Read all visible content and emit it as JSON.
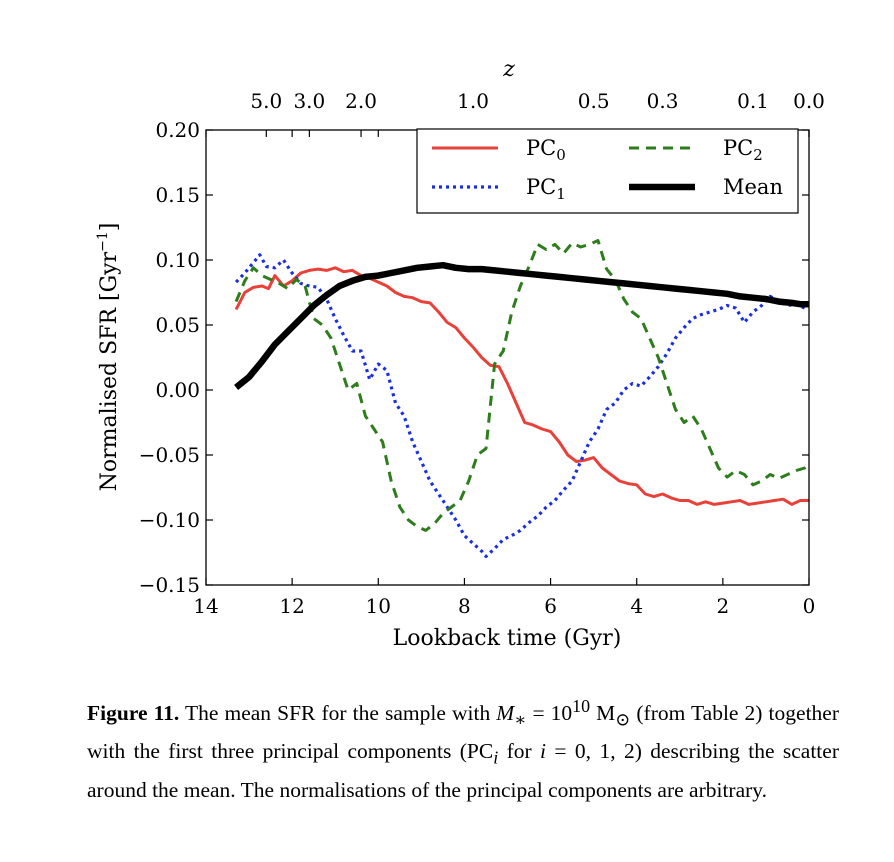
{
  "chart_data": {
    "type": "line",
    "xlabel": "Lookback time (Gyr)",
    "ylabel": "Normalised SFR [Gyr",
    "ylabel_sup": "−1",
    "ylabel_close": "]",
    "top_axis_label": "z",
    "xlim": [
      14,
      0
    ],
    "ylim": [
      -0.15,
      0.2
    ],
    "x_ticks": [
      14,
      12,
      10,
      8,
      6,
      4,
      2,
      0
    ],
    "x_tick_labels": [
      "14",
      "12",
      "10",
      "8",
      "6",
      "4",
      "2",
      "0"
    ],
    "y_ticks": [
      -0.15,
      -0.1,
      -0.05,
      0.0,
      0.05,
      0.1,
      0.15,
      0.2
    ],
    "y_tick_labels": [
      "−0.15",
      "−0.10",
      "−0.05",
      "0.00",
      "0.05",
      "0.10",
      "0.15",
      "0.20"
    ],
    "top_ticks": [
      {
        "label": "5.0",
        "t": 12.6
      },
      {
        "label": "3.0",
        "t": 11.6
      },
      {
        "label": "2.0",
        "t": 10.4
      },
      {
        "label": "1.0",
        "t": 7.8
      },
      {
        "label": "0.5",
        "t": 5.0
      },
      {
        "label": "0.3",
        "t": 3.4
      },
      {
        "label": "0.1",
        "t": 1.3
      },
      {
        "label": "0.0",
        "t": 0.0
      }
    ],
    "legend": {
      "placement": "top-right",
      "columns": 2
    },
    "grid": false,
    "series": [
      {
        "name": "PC",
        "sub": "0",
        "color": "#e8413a",
        "style": "solid",
        "points": [
          [
            13.3,
            0.062
          ],
          [
            13.1,
            0.075
          ],
          [
            12.9,
            0.079
          ],
          [
            12.7,
            0.08
          ],
          [
            12.55,
            0.078
          ],
          [
            12.4,
            0.088
          ],
          [
            12.2,
            0.08
          ],
          [
            12.0,
            0.084
          ],
          [
            11.8,
            0.09
          ],
          [
            11.6,
            0.092
          ],
          [
            11.4,
            0.093
          ],
          [
            11.2,
            0.092
          ],
          [
            11.0,
            0.094
          ],
          [
            10.8,
            0.091
          ],
          [
            10.6,
            0.092
          ],
          [
            10.4,
            0.088
          ],
          [
            10.2,
            0.086
          ],
          [
            10.0,
            0.083
          ],
          [
            9.8,
            0.08
          ],
          [
            9.6,
            0.075
          ],
          [
            9.4,
            0.072
          ],
          [
            9.2,
            0.071
          ],
          [
            9.0,
            0.068
          ],
          [
            8.8,
            0.067
          ],
          [
            8.6,
            0.06
          ],
          [
            8.4,
            0.052
          ],
          [
            8.2,
            0.048
          ],
          [
            8.0,
            0.04
          ],
          [
            7.8,
            0.033
          ],
          [
            7.6,
            0.025
          ],
          [
            7.4,
            0.019
          ],
          [
            7.2,
            0.018
          ],
          [
            7.0,
            0.005
          ],
          [
            6.8,
            -0.01
          ],
          [
            6.6,
            -0.025
          ],
          [
            6.4,
            -0.027
          ],
          [
            6.2,
            -0.03
          ],
          [
            6.0,
            -0.032
          ],
          [
            5.8,
            -0.04
          ],
          [
            5.6,
            -0.05
          ],
          [
            5.4,
            -0.055
          ],
          [
            5.2,
            -0.054
          ],
          [
            5.0,
            -0.052
          ],
          [
            4.8,
            -0.06
          ],
          [
            4.6,
            -0.065
          ],
          [
            4.4,
            -0.07
          ],
          [
            4.2,
            -0.072
          ],
          [
            4.0,
            -0.073
          ],
          [
            3.8,
            -0.08
          ],
          [
            3.6,
            -0.082
          ],
          [
            3.4,
            -0.08
          ],
          [
            3.2,
            -0.083
          ],
          [
            3.0,
            -0.085
          ],
          [
            2.8,
            -0.085
          ],
          [
            2.6,
            -0.088
          ],
          [
            2.4,
            -0.086
          ],
          [
            2.2,
            -0.088
          ],
          [
            2.0,
            -0.087
          ],
          [
            1.8,
            -0.086
          ],
          [
            1.6,
            -0.085
          ],
          [
            1.4,
            -0.088
          ],
          [
            1.2,
            -0.087
          ],
          [
            1.0,
            -0.086
          ],
          [
            0.8,
            -0.085
          ],
          [
            0.6,
            -0.084
          ],
          [
            0.4,
            -0.088
          ],
          [
            0.2,
            -0.085
          ],
          [
            0.0,
            -0.085
          ]
        ]
      },
      {
        "name": "PC",
        "sub": "1",
        "color": "#1a2fe0",
        "style": "dotted",
        "points": [
          [
            13.3,
            0.083
          ],
          [
            13.1,
            0.09
          ],
          [
            12.9,
            0.098
          ],
          [
            12.75,
            0.104
          ],
          [
            12.6,
            0.095
          ],
          [
            12.4,
            0.094
          ],
          [
            12.2,
            0.1
          ],
          [
            12.0,
            0.09
          ],
          [
            11.8,
            0.082
          ],
          [
            11.6,
            0.08
          ],
          [
            11.4,
            0.079
          ],
          [
            11.2,
            0.07
          ],
          [
            11.0,
            0.055
          ],
          [
            10.8,
            0.042
          ],
          [
            10.6,
            0.03
          ],
          [
            10.4,
            0.03
          ],
          [
            10.2,
            0.008
          ],
          [
            10.0,
            0.02
          ],
          [
            9.8,
            0.015
          ],
          [
            9.6,
            -0.01
          ],
          [
            9.4,
            -0.02
          ],
          [
            9.2,
            -0.04
          ],
          [
            9.0,
            -0.055
          ],
          [
            8.8,
            -0.07
          ],
          [
            8.6,
            -0.08
          ],
          [
            8.4,
            -0.09
          ],
          [
            8.2,
            -0.1
          ],
          [
            8.0,
            -0.112
          ],
          [
            7.8,
            -0.118
          ],
          [
            7.6,
            -0.124
          ],
          [
            7.5,
            -0.128
          ],
          [
            7.3,
            -0.122
          ],
          [
            7.1,
            -0.115
          ],
          [
            6.9,
            -0.112
          ],
          [
            6.7,
            -0.108
          ],
          [
            6.5,
            -0.102
          ],
          [
            6.3,
            -0.097
          ],
          [
            6.1,
            -0.09
          ],
          [
            5.9,
            -0.085
          ],
          [
            5.7,
            -0.077
          ],
          [
            5.5,
            -0.07
          ],
          [
            5.3,
            -0.055
          ],
          [
            5.1,
            -0.04
          ],
          [
            4.9,
            -0.03
          ],
          [
            4.7,
            -0.015
          ],
          [
            4.5,
            -0.01
          ],
          [
            4.3,
            0.0
          ],
          [
            4.1,
            0.005
          ],
          [
            3.9,
            0.003
          ],
          [
            3.7,
            0.01
          ],
          [
            3.5,
            0.018
          ],
          [
            3.3,
            0.028
          ],
          [
            3.1,
            0.04
          ],
          [
            2.9,
            0.048
          ],
          [
            2.7,
            0.055
          ],
          [
            2.5,
            0.058
          ],
          [
            2.3,
            0.06
          ],
          [
            2.1,
            0.062
          ],
          [
            1.9,
            0.065
          ],
          [
            1.7,
            0.063
          ],
          [
            1.5,
            0.052
          ],
          [
            1.3,
            0.06
          ],
          [
            1.1,
            0.065
          ],
          [
            0.9,
            0.072
          ],
          [
            0.7,
            0.068
          ],
          [
            0.5,
            0.065
          ],
          [
            0.3,
            0.066
          ],
          [
            0.1,
            0.063
          ],
          [
            0.0,
            0.063
          ]
        ]
      },
      {
        "name": "PC",
        "sub": "2",
        "color": "#2e7d1c",
        "style": "dashed",
        "points": [
          [
            13.3,
            0.068
          ],
          [
            13.1,
            0.084
          ],
          [
            12.9,
            0.094
          ],
          [
            12.7,
            0.088
          ],
          [
            12.5,
            0.085
          ],
          [
            12.3,
            0.082
          ],
          [
            12.1,
            0.078
          ],
          [
            11.9,
            0.085
          ],
          [
            11.7,
            0.08
          ],
          [
            11.5,
            0.055
          ],
          [
            11.3,
            0.05
          ],
          [
            11.1,
            0.04
          ],
          [
            10.9,
            0.02
          ],
          [
            10.7,
            0.0
          ],
          [
            10.5,
            0.005
          ],
          [
            10.3,
            -0.02
          ],
          [
            10.1,
            -0.03
          ],
          [
            9.9,
            -0.04
          ],
          [
            9.7,
            -0.07
          ],
          [
            9.5,
            -0.09
          ],
          [
            9.3,
            -0.1
          ],
          [
            9.1,
            -0.105
          ],
          [
            8.9,
            -0.108
          ],
          [
            8.7,
            -0.103
          ],
          [
            8.5,
            -0.095
          ],
          [
            8.3,
            -0.09
          ],
          [
            8.1,
            -0.085
          ],
          [
            7.9,
            -0.07
          ],
          [
            7.7,
            -0.05
          ],
          [
            7.5,
            -0.045
          ],
          [
            7.3,
            0.02
          ],
          [
            7.1,
            0.03
          ],
          [
            6.9,
            0.06
          ],
          [
            6.7,
            0.08
          ],
          [
            6.5,
            0.095
          ],
          [
            6.3,
            0.112
          ],
          [
            6.1,
            0.108
          ],
          [
            5.9,
            0.112
          ],
          [
            5.7,
            0.105
          ],
          [
            5.5,
            0.113
          ],
          [
            5.3,
            0.11
          ],
          [
            5.1,
            0.112
          ],
          [
            4.9,
            0.115
          ],
          [
            4.7,
            0.093
          ],
          [
            4.5,
            0.085
          ],
          [
            4.3,
            0.07
          ],
          [
            4.1,
            0.06
          ],
          [
            3.9,
            0.055
          ],
          [
            3.7,
            0.04
          ],
          [
            3.5,
            0.025
          ],
          [
            3.3,
            0.005
          ],
          [
            3.1,
            -0.015
          ],
          [
            2.9,
            -0.025
          ],
          [
            2.7,
            -0.02
          ],
          [
            2.5,
            -0.03
          ],
          [
            2.3,
            -0.045
          ],
          [
            2.1,
            -0.06
          ],
          [
            1.9,
            -0.067
          ],
          [
            1.7,
            -0.062
          ],
          [
            1.5,
            -0.065
          ],
          [
            1.3,
            -0.073
          ],
          [
            1.1,
            -0.07
          ],
          [
            0.9,
            -0.065
          ],
          [
            0.7,
            -0.068
          ],
          [
            0.5,
            -0.065
          ],
          [
            0.3,
            -0.062
          ],
          [
            0.1,
            -0.06
          ],
          [
            0.0,
            -0.058
          ]
        ]
      },
      {
        "name": "Mean",
        "color": "#000000",
        "style": "thick",
        "points": [
          [
            13.3,
            0.002
          ],
          [
            13.0,
            0.01
          ],
          [
            12.7,
            0.022
          ],
          [
            12.4,
            0.035
          ],
          [
            12.1,
            0.045
          ],
          [
            11.8,
            0.055
          ],
          [
            11.5,
            0.065
          ],
          [
            11.2,
            0.073
          ],
          [
            10.9,
            0.08
          ],
          [
            10.6,
            0.084
          ],
          [
            10.3,
            0.087
          ],
          [
            10.0,
            0.088
          ],
          [
            9.7,
            0.09
          ],
          [
            9.4,
            0.092
          ],
          [
            9.1,
            0.094
          ],
          [
            8.8,
            0.095
          ],
          [
            8.5,
            0.096
          ],
          [
            8.2,
            0.094
          ],
          [
            7.9,
            0.093
          ],
          [
            7.6,
            0.093
          ],
          [
            7.3,
            0.092
          ],
          [
            7.0,
            0.091
          ],
          [
            6.7,
            0.09
          ],
          [
            6.4,
            0.089
          ],
          [
            6.1,
            0.088
          ],
          [
            5.8,
            0.087
          ],
          [
            5.5,
            0.086
          ],
          [
            5.2,
            0.085
          ],
          [
            4.9,
            0.084
          ],
          [
            4.6,
            0.083
          ],
          [
            4.3,
            0.082
          ],
          [
            4.0,
            0.081
          ],
          [
            3.7,
            0.08
          ],
          [
            3.4,
            0.079
          ],
          [
            3.1,
            0.078
          ],
          [
            2.8,
            0.077
          ],
          [
            2.5,
            0.076
          ],
          [
            2.2,
            0.075
          ],
          [
            1.9,
            0.074
          ],
          [
            1.6,
            0.072
          ],
          [
            1.3,
            0.071
          ],
          [
            1.0,
            0.07
          ],
          [
            0.7,
            0.068
          ],
          [
            0.4,
            0.067
          ],
          [
            0.2,
            0.066
          ],
          [
            0.0,
            0.066
          ]
        ]
      }
    ]
  },
  "caption": {
    "label": "Figure 11.",
    "text_1": " The mean SFR for the sample with ",
    "math_1": "M",
    "math_1_sub": "∗",
    "math_1_rest": " = 10",
    "math_1_sup": "10",
    "text_2": " M",
    "text_2_sub": "⊙",
    "text_3": " (from Table 2) together with the first three principal components (PC",
    "text_3_sub": "i",
    "text_4": " for ",
    "math_2": "i",
    "math_2_rest": " = 0, 1, 2",
    "text_5": ") describing the scatter around the mean. The normalisations of the principal components are arbitrary."
  }
}
